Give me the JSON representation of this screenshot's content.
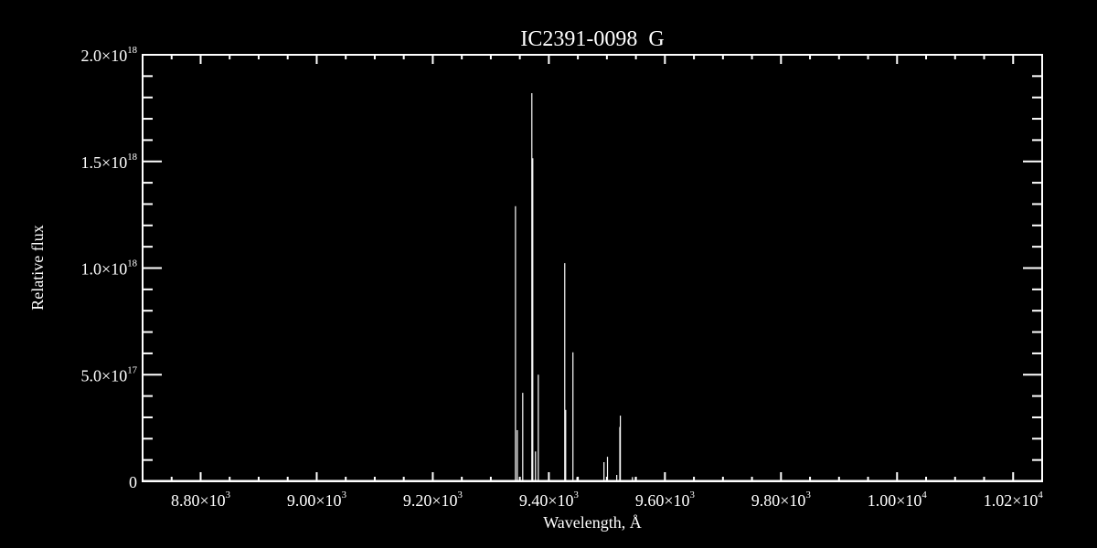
{
  "chart_data": {
    "type": "line",
    "title": "IC2391-0098  G",
    "xlabel": "Wavelength, Å",
    "ylabel": "Relative flux",
    "xlim": [
      8700,
      10250
    ],
    "ylim": [
      0,
      2e+18
    ],
    "x_ticks": [
      {
        "value": 8800,
        "mant": "8.80",
        "exp": "3"
      },
      {
        "value": 9000,
        "mant": "9.00",
        "exp": "3"
      },
      {
        "value": 9200,
        "mant": "9.20",
        "exp": "3"
      },
      {
        "value": 9400,
        "mant": "9.40",
        "exp": "3"
      },
      {
        "value": 9600,
        "mant": "9.60",
        "exp": "3"
      },
      {
        "value": 9800,
        "mant": "9.80",
        "exp": "3"
      },
      {
        "value": 10000,
        "mant": "1.00",
        "exp": "4"
      },
      {
        "value": 10200,
        "mant": "1.02",
        "exp": "4"
      }
    ],
    "y_ticks": [
      {
        "value": 0,
        "mant": "0",
        "exp": ""
      },
      {
        "value": 5e+17,
        "mant": "5.0",
        "exp": "17"
      },
      {
        "value": 1e+18,
        "mant": "1.0",
        "exp": "18"
      },
      {
        "value": 1.5e+18,
        "mant": "1.5",
        "exp": "18"
      },
      {
        "value": 2e+18,
        "mant": "2.0",
        "exp": "18"
      }
    ],
    "grid": false,
    "colors": {
      "background": "#000000",
      "foreground": "#ffffff"
    },
    "series": [
      {
        "x": [
          9342.5,
          9345.6,
          9355.0,
          9370.7,
          9372.3,
          9377.0,
          9381.8,
          9399.7,
          9427.4,
          9429.0,
          9441.5,
          9448.4,
          9495.0,
          9501.0,
          9517.0,
          9522.3,
          9523.2,
          9544.0,
          9549.0
        ],
        "y": [
          1.29e+18,
          2.4e+17,
          4.15e+17,
          1.82e+18,
          1.515e+18,
          1.4e+17,
          5e+17,
          3.4e+16,
          1.023e+18,
          3.35e+17,
          6.05e+17,
          2e+16,
          9e+16,
          1.15e+17,
          3e+16,
          2.55e+17,
          3.08e+17,
          2e+16,
          2e+16
        ]
      }
    ]
  }
}
